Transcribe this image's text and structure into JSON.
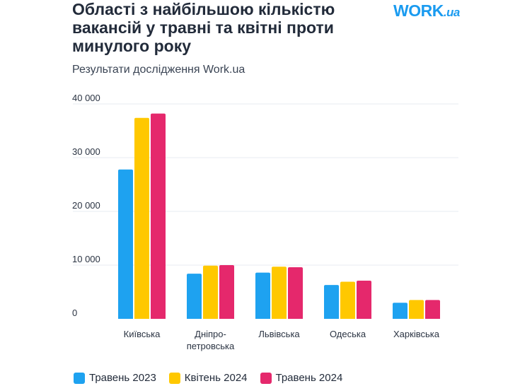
{
  "header": {
    "title": "Області з найбільшою кількістю вакансій у травні та квітні проти минулого року",
    "subtitle": "Результати дослідження Work.ua",
    "logo_main": "WORK",
    "logo_suffix": ".ua"
  },
  "colors": {
    "series_1": "#1ea2f0",
    "series_2": "#ffc800",
    "series_3": "#e5286c",
    "grid": "#e7ebf0",
    "axis_text": "#2a3342"
  },
  "chart_data": {
    "type": "bar",
    "categories": [
      "Київська",
      "Дніпро-\nпетровська",
      "Львівська",
      "Одеська",
      "Харківська"
    ],
    "series": [
      {
        "name": "Травень 2023",
        "values": [
          27800,
          8400,
          8600,
          6300,
          3000
        ]
      },
      {
        "name": "Квітень 2024",
        "values": [
          37400,
          9900,
          9700,
          6900,
          3500
        ]
      },
      {
        "name": "Травень 2024",
        "values": [
          38200,
          10000,
          9600,
          7100,
          3500
        ]
      }
    ],
    "y_ticks": [
      "0",
      "10 000",
      "20 000",
      "30 000",
      "40 000"
    ],
    "ylim": [
      0,
      40000
    ],
    "grid": true,
    "legend_position": "bottom"
  }
}
